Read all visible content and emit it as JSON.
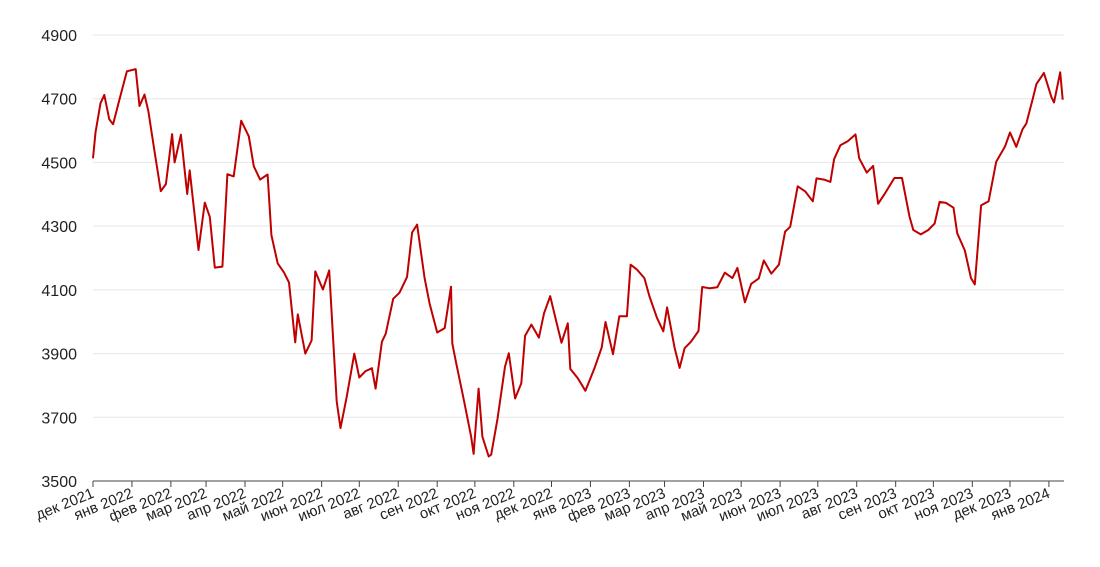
{
  "chart_data": {
    "type": "line",
    "title": "",
    "xlabel": "",
    "ylabel": "",
    "ylim": [
      3500,
      4900
    ],
    "y_ticks": [
      3500,
      3700,
      3900,
      4100,
      4300,
      4500,
      4700,
      4900
    ],
    "grid": "horizontal",
    "x_ticks": [
      "дек 2021",
      "янв 2022",
      "фев 2022",
      "мар 2022",
      "апр 2022",
      "май 2022",
      "июн 2022",
      "июл 2022",
      "авг 2022",
      "сен 2022",
      "окт 2022",
      "ноя 2022",
      "дек 2022",
      "янв 2023",
      "фев 2023",
      "мар 2023",
      "апр 2023",
      "май 2023",
      "июн 2023",
      "июл 2023",
      "авг 2023",
      "сен 2023",
      "окт 2023",
      "ноя 2023",
      "дек 2023",
      "янв 2024"
    ],
    "series": [
      {
        "color": "#c00000",
        "x": [
          "2021-12-01",
          "2021-12-03",
          "2021-12-07",
          "2021-12-10",
          "2021-12-14",
          "2021-12-17",
          "2021-12-22",
          "2021-12-28",
          "2022-01-04",
          "2022-01-07",
          "2022-01-11",
          "2022-01-14",
          "2022-01-19",
          "2022-01-24",
          "2022-01-28",
          "2022-02-02",
          "2022-02-04",
          "2022-02-09",
          "2022-02-14",
          "2022-02-16",
          "2022-02-23",
          "2022-02-28",
          "2022-03-04",
          "2022-03-08",
          "2022-03-14",
          "2022-03-18",
          "2022-03-23",
          "2022-03-29",
          "2022-04-04",
          "2022-04-08",
          "2022-04-13",
          "2022-04-19",
          "2022-04-22",
          "2022-04-27",
          "2022-05-02",
          "2022-05-06",
          "2022-05-11",
          "2022-05-13",
          "2022-05-19",
          "2022-05-24",
          "2022-05-27",
          "2022-06-02",
          "2022-06-07",
          "2022-06-13",
          "2022-06-16",
          "2022-06-21",
          "2022-06-27",
          "2022-07-01",
          "2022-07-06",
          "2022-07-11",
          "2022-07-14",
          "2022-07-19",
          "2022-07-22",
          "2022-07-28",
          "2022-08-02",
          "2022-08-08",
          "2022-08-12",
          "2022-08-16",
          "2022-08-22",
          "2022-08-26",
          "2022-09-01",
          "2022-09-07",
          "2022-09-12",
          "2022-09-13",
          "2022-09-16",
          "2022-09-22",
          "2022-09-28",
          "2022-09-30",
          "2022-10-04",
          "2022-10-07",
          "2022-10-12",
          "2022-10-14",
          "2022-10-19",
          "2022-10-25",
          "2022-10-28",
          "2022-11-02",
          "2022-11-07",
          "2022-11-10",
          "2022-11-15",
          "2022-11-21",
          "2022-11-25",
          "2022-11-30",
          "2022-12-05",
          "2022-12-09",
          "2022-12-14",
          "2022-12-16",
          "2022-12-22",
          "2022-12-28",
          "2023-01-04",
          "2023-01-10",
          "2023-01-13",
          "2023-01-19",
          "2023-01-24",
          "2023-01-30",
          "2023-02-02",
          "2023-02-07",
          "2023-02-13",
          "2023-02-17",
          "2023-02-23",
          "2023-02-28",
          "2023-03-03",
          "2023-03-09",
          "2023-03-13",
          "2023-03-17",
          "2023-03-22",
          "2023-03-28",
          "2023-03-31",
          "2023-04-06",
          "2023-04-12",
          "2023-04-18",
          "2023-04-24",
          "2023-04-28",
          "2023-05-04",
          "2023-05-09",
          "2023-05-15",
          "2023-05-19",
          "2023-05-25",
          "2023-05-31",
          "2023-06-05",
          "2023-06-09",
          "2023-06-15",
          "2023-06-21",
          "2023-06-27",
          "2023-06-30",
          "2023-07-06",
          "2023-07-11",
          "2023-07-14",
          "2023-07-19",
          "2023-07-25",
          "2023-07-31",
          "2023-08-03",
          "2023-08-09",
          "2023-08-14",
          "2023-08-18",
          "2023-08-24",
          "2023-08-31",
          "2023-09-06",
          "2023-09-12",
          "2023-09-15",
          "2023-09-21",
          "2023-09-27",
          "2023-10-02",
          "2023-10-06",
          "2023-10-11",
          "2023-10-17",
          "2023-10-20",
          "2023-10-26",
          "2023-10-31",
          "2023-11-03",
          "2023-11-08",
          "2023-11-14",
          "2023-11-20",
          "2023-11-27",
          "2023-12-01",
          "2023-12-06",
          "2023-12-11",
          "2023-12-14",
          "2023-12-19",
          "2023-12-22",
          "2023-12-28",
          "2024-01-03",
          "2024-01-05",
          "2024-01-10",
          "2024-01-12"
        ],
        "values": [
          4513,
          4594,
          4686,
          4712,
          4635,
          4620,
          4697,
          4786,
          4793,
          4677,
          4713,
          4662,
          4533,
          4410,
          4432,
          4589,
          4500,
          4587,
          4401,
          4475,
          4225,
          4374,
          4329,
          4170,
          4173,
          4463,
          4456,
          4631,
          4582,
          4488,
          4446,
          4462,
          4272,
          4183,
          4155,
          4123,
          3935,
          4023,
          3900,
          3941,
          4158,
          4101,
          4161,
          3750,
          3666,
          3764,
          3900,
          3825,
          3845,
          3854,
          3790,
          3937,
          3962,
          4072,
          4091,
          4140,
          4280,
          4305,
          4137,
          4057,
          3966,
          3980,
          4110,
          3932,
          3873,
          3758,
          3640,
          3585,
          3790,
          3639,
          3577,
          3583,
          3695,
          3859,
          3901,
          3759,
          3807,
          3956,
          3991,
          3950,
          4026,
          4080,
          3998,
          3934,
          3995,
          3852,
          3822,
          3783,
          3852,
          3919,
          3999,
          3898,
          4017,
          4017,
          4179,
          4164,
          4137,
          4079,
          4012,
          3970,
          4045,
          3918,
          3855,
          3917,
          3937,
          3971,
          4109,
          4105,
          4108,
          4154,
          4137,
          4169,
          4061,
          4119,
          4136,
          4192,
          4151,
          4179,
          4283,
          4298,
          4425,
          4409,
          4378,
          4450,
          4446,
          4439,
          4510,
          4554,
          4567,
          4588,
          4513,
          4468,
          4489,
          4370,
          4406,
          4451,
          4451,
          4330,
          4288,
          4274,
          4288,
          4308,
          4376,
          4373,
          4358,
          4278,
          4224,
          4137,
          4117,
          4365,
          4378,
          4502,
          4550,
          4594,
          4549,
          4604,
          4622,
          4698,
          4746,
          4781,
          4705,
          4688,
          4783,
          4697
        ]
      }
    ]
  }
}
